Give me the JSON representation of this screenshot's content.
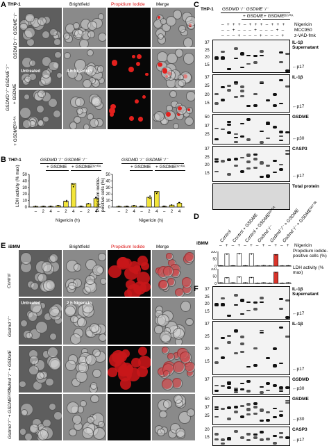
{
  "panels": {
    "A": {
      "letter": "A",
      "cell_line": "THP-1",
      "columns": [
        "Brightfield",
        "Propidium Iodide",
        "Merge"
      ],
      "row_labels": [
        "GSDMD⁻/⁻ GSDME⁻/⁻",
        "+ GSDME",
        "+ GSDMEᴰ²⁷⁰ᴬ"
      ],
      "tags": [
        "Untreated",
        "4 h Nigericin"
      ]
    },
    "B": {
      "letter": "B",
      "cell_line": "THP-1",
      "genotype": "GSDMD⁻/⁻ GSDME⁻/⁻",
      "groups": [
        "+ GSDME",
        "+ GSDMEᴰ²⁷⁰ᴬ"
      ],
      "ylabel_left": "LDH activity (% max)",
      "ylabel_right": "Propidium iodide-positive cells (%)",
      "xlabel": "Nigericin (h)",
      "yticks": [
        "0",
        "10",
        "20",
        "30",
        "40",
        "50"
      ],
      "xticks": [
        "–",
        "2",
        "4"
      ]
    },
    "C": {
      "letter": "C",
      "cell_line": "THP-1",
      "genotype": "GSDMD⁻/⁻ GSDME⁻/⁻",
      "groups": [
        "+ GSDME",
        "+ GSDMEᴰ²⁷⁰ᴬ"
      ],
      "treatments": [
        {
          "name": "Nigericin",
          "signs": "– + + + – + + + – + + +"
        },
        {
          "name": "MCC950",
          "signs": "– – + – – – + – – – + –"
        },
        {
          "name": "z-VAD-fmk",
          "signs": "– – – + – – – + – – – +"
        }
      ],
      "blots": [
        {
          "name": "IL-1β",
          "sub": "Supernatant",
          "mw": [
            "37",
            "25",
            "20",
            "15"
          ],
          "arrow": "p17"
        },
        {
          "name": "IL-1β",
          "sub": "",
          "mw": [
            "37",
            "25",
            "20",
            "15"
          ],
          "arrow": "p17"
        },
        {
          "name": "GSDME",
          "sub": "",
          "mw": [
            "50",
            "37",
            "25"
          ],
          "arrow": "p30"
        },
        {
          "name": "CASP3",
          "sub": "",
          "mw": [
            "37",
            "25",
            "20",
            "15"
          ],
          "arrow": "p17"
        },
        {
          "name": "Total protein",
          "sub": "",
          "mw": [],
          "arrow": ""
        }
      ]
    },
    "D": {
      "letter": "D",
      "cell_type": "iBMM",
      "columns": [
        "Control",
        "Control + GSDME",
        "Control + GSDMEᴰ²⁷⁰ᴬ",
        "Gsdmd⁻/⁻",
        "Gsdmd⁻/⁻ + GSDME",
        "Gsdmd⁻/⁻ + GSDMEᴰ²⁷⁰ᴬ"
      ],
      "nigericin_signs": [
        "–",
        "+",
        "–",
        "+",
        "–",
        "+",
        "–",
        "+",
        "–",
        "+",
        "–",
        "+"
      ],
      "row_labels": [
        "Nigericin",
        "Propidium iodide-positive cells (%)",
        "LDH activity (% max)"
      ],
      "yticks_pi": [
        "100",
        "50",
        "0"
      ],
      "yticks_ldh": [
        "100",
        "50",
        "0"
      ]
    },
    "E": {
      "letter": "E",
      "cell_type": "iBMM",
      "columns": [
        "Brightfield",
        "Propidium Iodide",
        "Merge"
      ],
      "row_labels": [
        "Control",
        "Gsdmd⁻/⁻",
        "Gsdmd⁻/⁻ + GSDME",
        "Gsdmd⁻/⁻ + GSDMEᴰ²⁷⁰ᴬ"
      ],
      "tags": [
        "Untreated",
        "2 h Nigericin"
      ]
    },
    "F": {
      "letter": "F",
      "blots": [
        {
          "name": "IL-1β",
          "sub": "Supernatant",
          "mw": [
            "37",
            "25",
            "20",
            "15"
          ],
          "arrow": "p17"
        },
        {
          "name": "IL-1β",
          "sub": "",
          "mw": [
            "37",
            "25",
            "20",
            "15"
          ],
          "arrow": "p17"
        },
        {
          "name": "GSDMD",
          "sub": "",
          "mw": [
            "37"
          ],
          "arrow": "p30"
        },
        {
          "name": "GSDME",
          "sub": "",
          "mw": [
            "50",
            "37",
            "25"
          ],
          "arrow": "p30"
        },
        {
          "name": "CASP3",
          "sub": "",
          "mw": [
            "20",
            "15"
          ],
          "arrow": "p17"
        }
      ]
    }
  },
  "colors": {
    "pi_red": "#e3201d",
    "bar_yellow": "#f3e53a",
    "bar_red": "#d9342b",
    "bar_white": "#ffffff"
  },
  "chart_data": [
    {
      "type": "bar",
      "xlabel": "Nigericin (h)",
      "ylabel": "LDH activity (% max)",
      "ylim": [
        0,
        50
      ],
      "categories": [
        "–",
        "2",
        "4",
        "–",
        "2",
        "4",
        "–",
        "2",
        "4"
      ],
      "series": [
        {
          "values": [
            1,
            1,
            1,
            2,
            9,
            36,
            1,
            5,
            13
          ]
        }
      ]
    },
    {
      "type": "bar",
      "xlabel": "Nigericin (h)",
      "ylabel": "Propidium iodide-positive cells (%)",
      "ylim": [
        0,
        50
      ],
      "categories": [
        "–",
        "2",
        "4",
        "–",
        "2",
        "4",
        "–",
        "2",
        "4"
      ],
      "series": [
        {
          "values": [
            1,
            1,
            2,
            1,
            15,
            24,
            1,
            3,
            6
          ]
        }
      ]
    },
    {
      "type": "bar",
      "ylabel": "Propidium iodide-positive cells (%)",
      "ylim": [
        0,
        100
      ],
      "categories": [
        "–",
        "+",
        "–",
        "+",
        "–",
        "+",
        "–",
        "+",
        "–",
        "+",
        "–",
        "+"
      ],
      "series": [
        {
          "values": [
            3,
            85,
            3,
            88,
            3,
            86,
            2,
            4,
            2,
            80,
            2,
            3
          ]
        }
      ]
    },
    {
      "type": "bar",
      "ylabel": "LDH activity (% max)",
      "ylim": [
        0,
        100
      ],
      "categories": [
        "–",
        "+",
        "–",
        "+",
        "–",
        "+",
        "–",
        "+",
        "–",
        "+",
        "–",
        "+"
      ],
      "series": [
        {
          "values": [
            5,
            40,
            5,
            45,
            5,
            42,
            3,
            5,
            3,
            78,
            3,
            5
          ]
        }
      ]
    }
  ]
}
